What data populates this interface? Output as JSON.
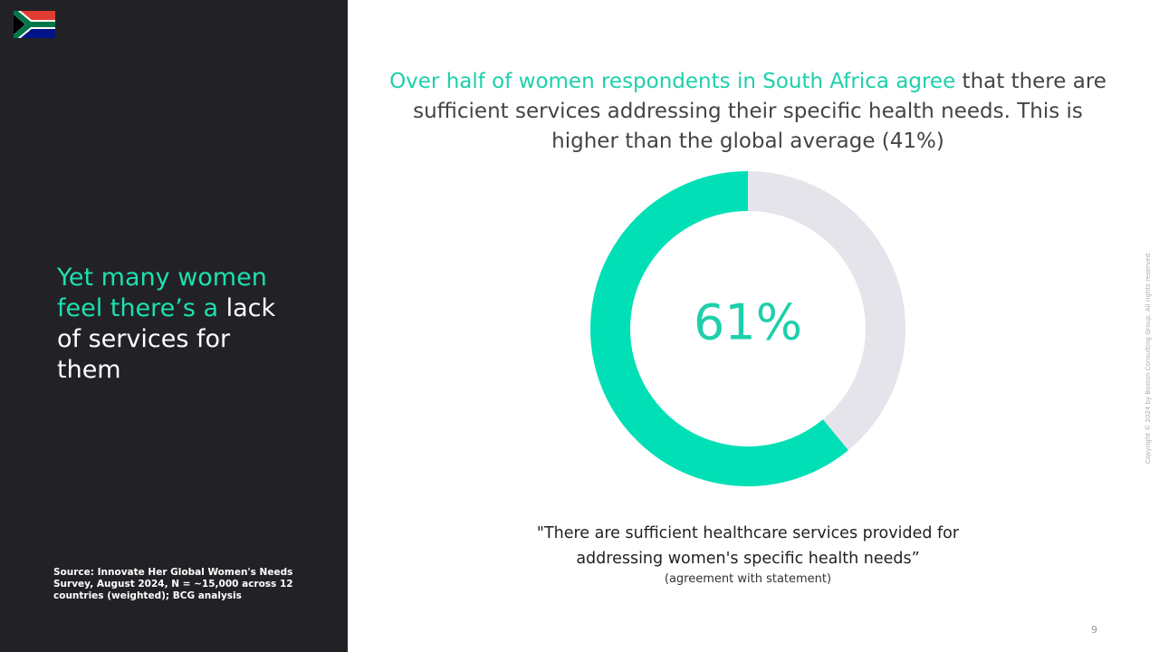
{
  "sidebar": {
    "heading_highlight": "Yet many women feel there’s a",
    "heading_rest": "lack of services for them",
    "source": "Source: Innovate Her Global Women's Needs Survey, August 2024, N = ~15,000 across 12 countries (weighted); BCG analysis"
  },
  "headline": {
    "highlight": "Over half of women respondents in South Africa agree",
    "rest": "that there are sufficient services addressing their specific health needs. This is higher than the global average (41%)"
  },
  "chart_data": {
    "type": "donut",
    "values": [
      61,
      39
    ],
    "value_labels": [
      "61%",
      null
    ],
    "colors": [
      "#00dfb5",
      "#e4e4ea"
    ],
    "caption": "\"There are sufficient healthcare services provided for addressing women's specific health needs”",
    "subcaption": "(agreement with statement)"
  },
  "copyright": "Copyright © 2024 by Boston Consulting Group. All rights reserved.",
  "page_number": "9"
}
